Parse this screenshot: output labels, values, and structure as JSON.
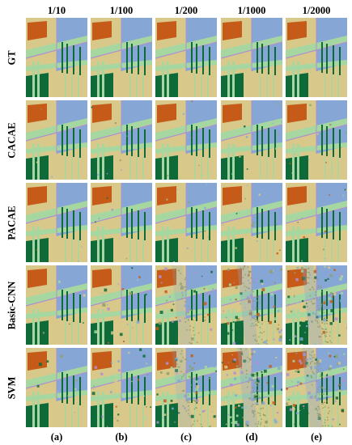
{
  "columns": [
    "1/10",
    "1/100",
    "1/200",
    "1/1000",
    "1/2000"
  ],
  "rows": [
    "GT",
    "CACAE",
    "PACAE",
    "Basic-CNN",
    "SVM"
  ],
  "subfigures": [
    "(a)",
    "(b)",
    "(c)",
    "(d)",
    "(e)"
  ],
  "colors": {
    "background_yellow": "#d8c98a",
    "light_green": "#a6d7a0",
    "blue": "#86a7d6",
    "dark_green": "#0f6a3a",
    "orange": "#c65a18",
    "purple": "#b08fd0",
    "noise_olive": "#8f9d6a"
  }
}
